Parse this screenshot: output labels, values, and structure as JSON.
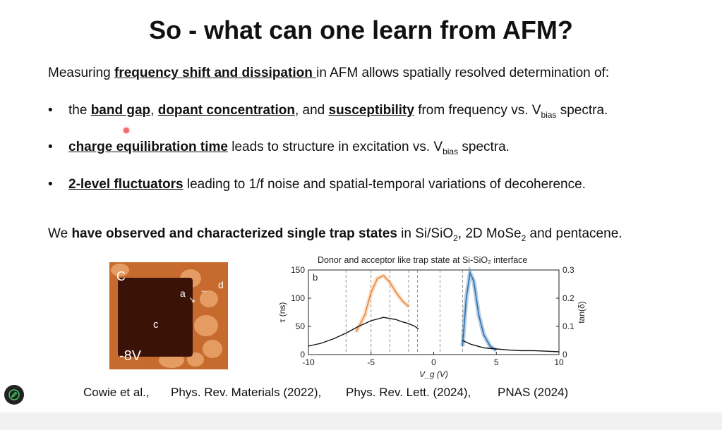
{
  "slide": {
    "title": "So - what can one learn from AFM?",
    "intro": {
      "pre": "Measuring ",
      "bold": "frequency shift and dissipation ",
      "post": "in AFM allows spatially resolved determination of:"
    },
    "bullets": [
      {
        "t1": "the ",
        "u1": "band gap",
        "t2": ", ",
        "u2": "dopant concentration",
        "t3": ", and ",
        "u3": "susceptibility",
        "t4": " from frequency vs. V",
        "sub": "bias",
        "t5": "  spectra."
      },
      {
        "u1": "charge equilibration time",
        "t1": " leads to structure in excitation vs. V",
        "sub": "bias",
        "t2": "  spectra."
      },
      {
        "u1": "2-level fluctuators",
        "t1": " leading to 1/f noise and spatial-temporal variations of decoherence."
      }
    ],
    "observed": {
      "pre": "We ",
      "bold": "have observed and characterized single trap states",
      "mid": " in Si/SiO",
      "sub1": "2",
      "mid2": ", 2D MoSe",
      "sub2": "2",
      "post": " and pentacene."
    },
    "image_labels": {
      "c_top": "C",
      "c_mid": "c",
      "a": "a",
      "d": "d",
      "voltage": "-8V"
    },
    "references": {
      "authors": "Cowie et al.,",
      "ref1": "Phys. Rev. Materials (2022),",
      "ref2": "Phys. Rev. Lett. (2024),",
      "ref3": "PNAS (2024)"
    }
  },
  "chart_data": {
    "type": "line",
    "title": "Donor and acceptor like trap state at Si-SiO₂ interface",
    "panel_label": "b",
    "xlabel": "V_g (V)",
    "ylabel": "τ (ns)",
    "y2label": "tan(δ)",
    "xlim": [
      -10,
      10
    ],
    "ylim": [
      0,
      150
    ],
    "y2lim": [
      0,
      0.3
    ],
    "xticks": [
      "-10",
      "-5",
      "0",
      "5",
      "10"
    ],
    "yticks": [
      "0",
      "50",
      "100",
      "150"
    ],
    "y2ticks": [
      "0",
      "0.1",
      "0.2",
      "0.3"
    ],
    "dashed_lines_x": [
      -7,
      -5,
      -3.5,
      -2,
      -1.3,
      0.5,
      2.3
    ],
    "colors": {
      "tau": "#111111",
      "donor": "#f0a060",
      "acceptor": "#2e6fb0",
      "grey": "#bbbbbb"
    },
    "series": [
      {
        "x": [
          -10,
          -9,
          -8,
          -7,
          -6,
          -5,
          -4,
          -3,
          -2.5,
          -2,
          -1.5,
          -1.2
        ],
        "y": [
          15,
          20,
          28,
          38,
          50,
          60,
          66,
          62,
          58,
          55,
          50,
          45
        ]
      },
      {
        "x": [
          -6.2,
          -5.5,
          -5,
          -4.5,
          -4,
          -3.5,
          -3,
          -2.5,
          -2
        ],
        "y": [
          40,
          70,
          110,
          135,
          140,
          128,
          110,
          95,
          85
        ]
      },
      {
        "x": [
          2.3,
          2.6,
          2.9,
          3.2,
          3.6,
          4,
          4.5,
          5
        ],
        "y": [
          0.03,
          0.2,
          0.29,
          0.26,
          0.14,
          0.07,
          0.03,
          0.015
        ]
      },
      {
        "x": [
          2.3,
          3,
          4,
          5,
          6,
          7,
          8,
          9,
          10
        ],
        "y": [
          25,
          18,
          12,
          10,
          8,
          7,
          7,
          6,
          5
        ]
      }
    ]
  }
}
